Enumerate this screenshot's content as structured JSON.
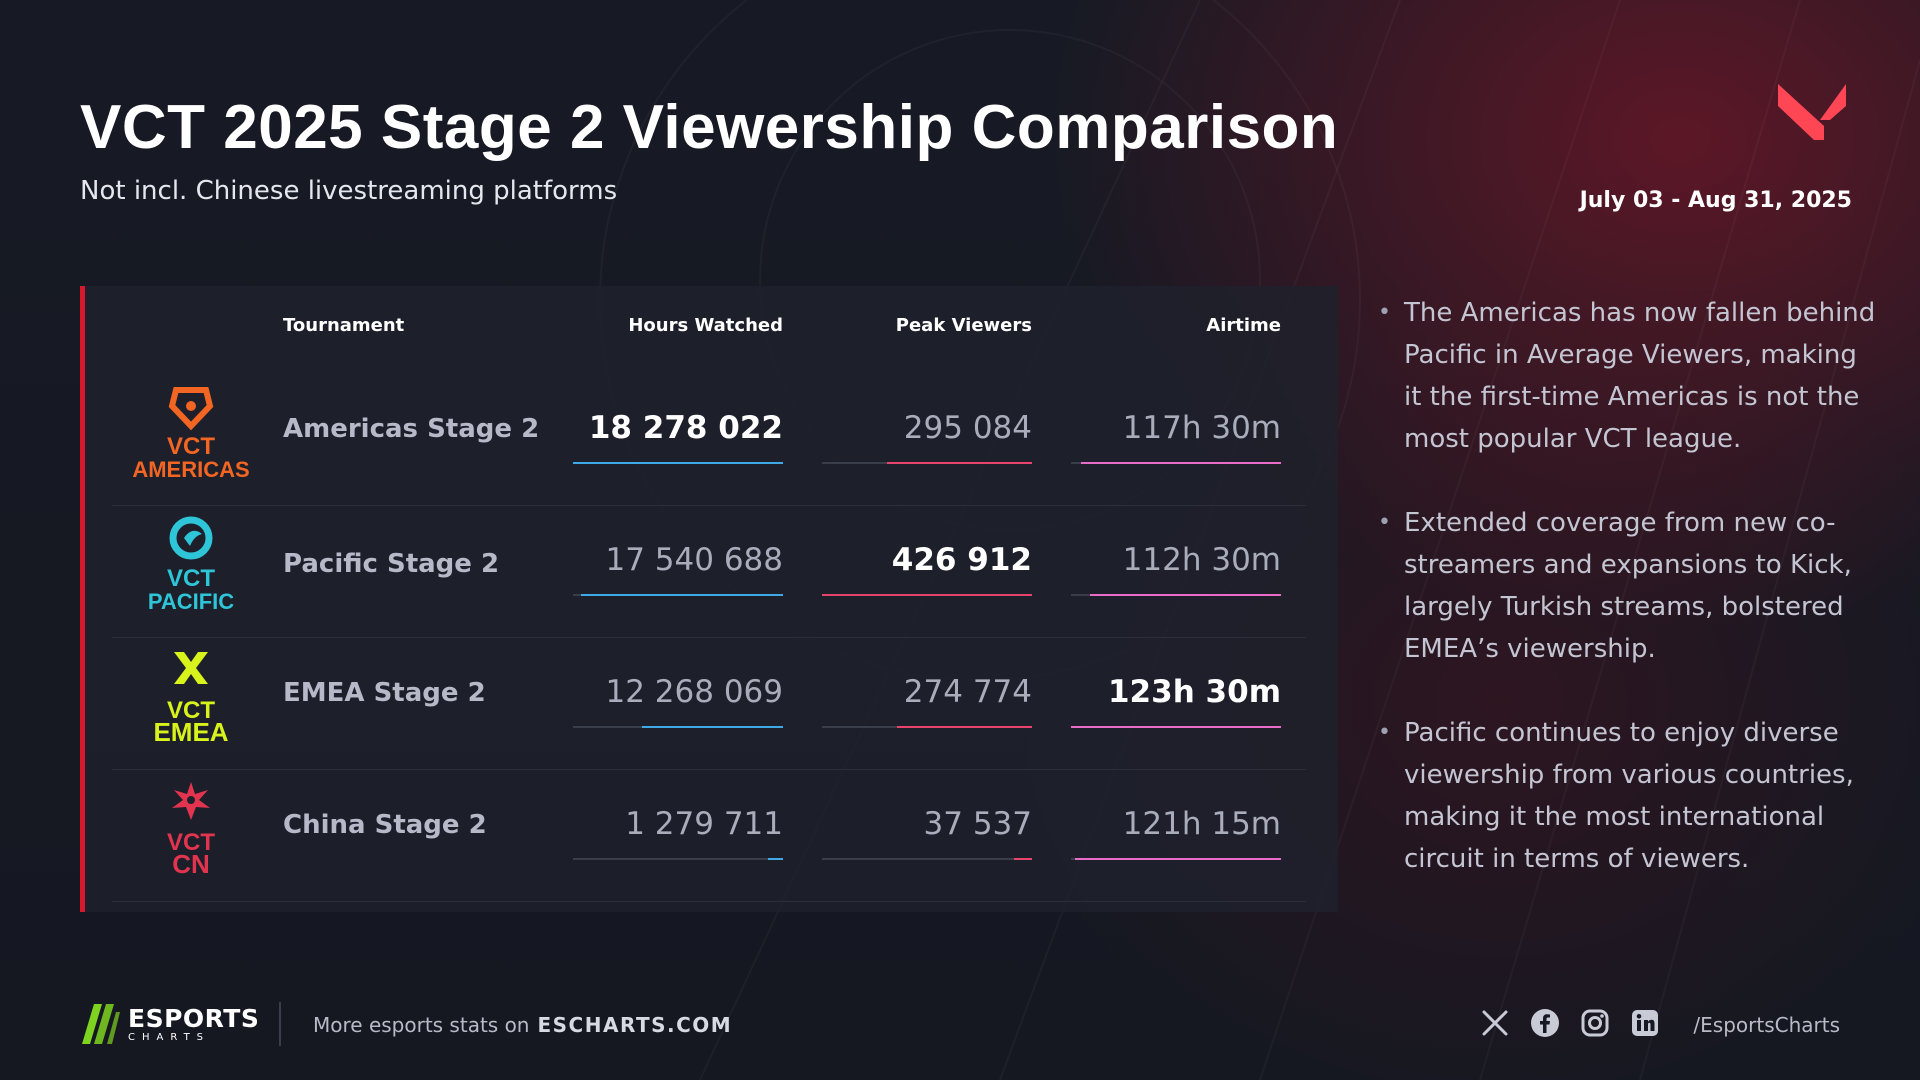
{
  "header": {
    "title": "VCT 2025 Stage 2 Viewership Comparison",
    "subtitle": "Not incl. Chinese livestreaming platforms",
    "date_range": "July 03 - Aug 31, 2025",
    "brand_icon": "valorant-v-logo-icon"
  },
  "chart_data": {
    "type": "table",
    "title": "VCT 2025 Stage 2 Viewership Comparison",
    "columns": [
      "Tournament",
      "Hours Watched",
      "Peak Viewers",
      "Airtime"
    ],
    "colors": {
      "hours_watched": "#3fa9e5",
      "peak_viewers": "#e8436d",
      "airtime": "#e86ac9",
      "accent": "#d7192e"
    },
    "rows": [
      {
        "logo": {
          "name": "vct-americas-logo-icon",
          "line1": "VCT",
          "line2": "AMERICAS",
          "color": "#f26522"
        },
        "tournament": "Americas Stage 2",
        "hours_watched": {
          "text": "18 278 022",
          "value": 18278022
        },
        "peak_viewers": {
          "text": "295 084",
          "value": 295084
        },
        "airtime": {
          "text": "117h 30m",
          "minutes": 7050
        },
        "best": "hours_watched"
      },
      {
        "logo": {
          "name": "vct-pacific-logo-icon",
          "line1": "VCT",
          "line2": "PACIFIC",
          "color": "#2fc5d8"
        },
        "tournament": "Pacific Stage 2",
        "hours_watched": {
          "text": "17 540 688",
          "value": 17540688
        },
        "peak_viewers": {
          "text": "426 912",
          "value": 426912
        },
        "airtime": {
          "text": "112h 30m",
          "minutes": 6750
        },
        "best": "peak_viewers"
      },
      {
        "logo": {
          "name": "vct-emea-logo-icon",
          "line1": "VCT",
          "line2": "EMEA",
          "color": "#d8f21c"
        },
        "tournament": "EMEA Stage 2",
        "hours_watched": {
          "text": "12 268 069",
          "value": 12268069
        },
        "peak_viewers": {
          "text": "274 774",
          "value": 274774
        },
        "airtime": {
          "text": "123h 30m",
          "minutes": 7410
        },
        "best": "airtime"
      },
      {
        "logo": {
          "name": "vct-cn-logo-icon",
          "line1": "VCT",
          "line2": "CN",
          "color": "#e2344f"
        },
        "tournament": "China Stage 2",
        "hours_watched": {
          "text": "1 279 711",
          "value": 1279711
        },
        "peak_viewers": {
          "text": "37 537",
          "value": 37537
        },
        "airtime": {
          "text": "121h 15m",
          "minutes": 7275
        },
        "best": ""
      }
    ]
  },
  "insights": [
    "The Americas has now fallen behind Pacific in Average Viewers, making it the first-time Americas is not the most popular VCT league.",
    "Extended coverage from new co-streamers and expansions to Kick, largely Turkish streams, bolstered EMEA’s viewership.",
    "Pacific continues to enjoy diverse viewership from various countries, making it the most international circuit in terms of viewers."
  ],
  "footer": {
    "brand_line1": "ESPORTS",
    "brand_line2": "CHARTS",
    "more_text": "More esports stats on",
    "site": "ESCHARTS.COM",
    "social_icons": [
      "x-icon",
      "facebook-icon",
      "instagram-icon",
      "linkedin-icon"
    ],
    "handle": "/EsportsCharts",
    "brand_color": "#7ed321"
  }
}
